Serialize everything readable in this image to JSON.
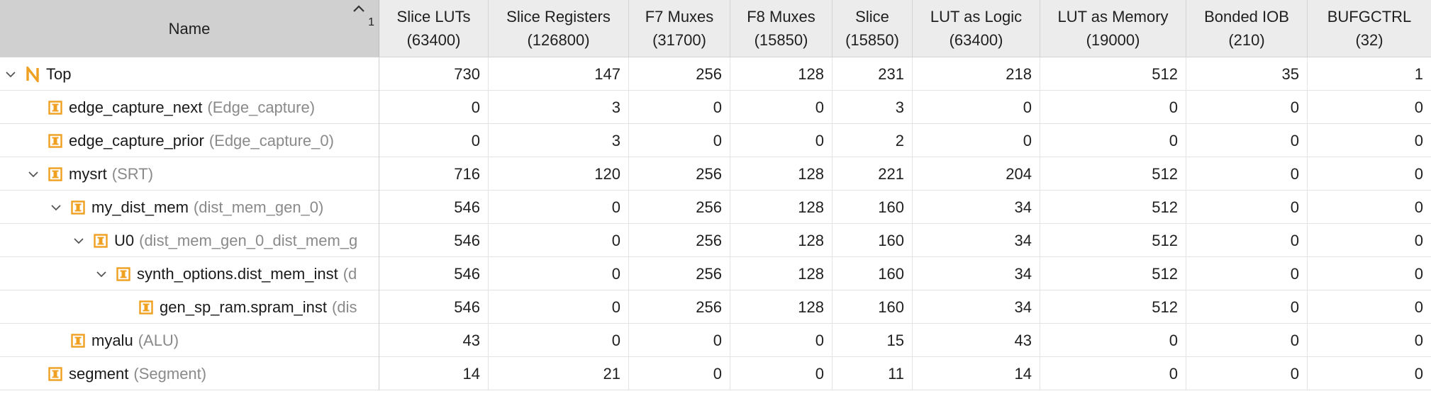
{
  "table": {
    "name_header": "Name",
    "sort_indicator": "1",
    "columns": [
      {
        "label": "Slice LUTs",
        "capacity": "(63400)"
      },
      {
        "label": "Slice Registers",
        "capacity": "(126800)"
      },
      {
        "label": "F7 Muxes",
        "capacity": "(31700)"
      },
      {
        "label": "F8 Muxes",
        "capacity": "(15850)"
      },
      {
        "label": "Slice",
        "capacity": "(15850)"
      },
      {
        "label": "LUT as Logic",
        "capacity": "(63400)"
      },
      {
        "label": "LUT as Memory",
        "capacity": "(19000)"
      },
      {
        "label": "Bonded IOB",
        "capacity": "(210)"
      },
      {
        "label": "BUFGCTRL",
        "capacity": "(32)"
      }
    ],
    "rows": [
      {
        "name": "Top",
        "module": "",
        "icon": "top-module-icon",
        "level": 0,
        "expandable": true,
        "values": [
          "730",
          "147",
          "256",
          "128",
          "231",
          "218",
          "512",
          "35",
          "1"
        ]
      },
      {
        "name": "edge_capture_next",
        "module": "(Edge_capture)",
        "icon": "instance-icon",
        "level": 1,
        "expandable": false,
        "values": [
          "0",
          "3",
          "0",
          "0",
          "3",
          "0",
          "0",
          "0",
          "0"
        ]
      },
      {
        "name": "edge_capture_prior",
        "module": "(Edge_capture_0)",
        "icon": "instance-icon",
        "level": 1,
        "expandable": false,
        "values": [
          "0",
          "3",
          "0",
          "0",
          "2",
          "0",
          "0",
          "0",
          "0"
        ]
      },
      {
        "name": "mysrt",
        "module": "(SRT)",
        "icon": "instance-icon",
        "level": 1,
        "expandable": true,
        "values": [
          "716",
          "120",
          "256",
          "128",
          "221",
          "204",
          "512",
          "0",
          "0"
        ]
      },
      {
        "name": "my_dist_mem",
        "module": "(dist_mem_gen_0)",
        "icon": "instance-icon",
        "level": 2,
        "expandable": true,
        "values": [
          "546",
          "0",
          "256",
          "128",
          "160",
          "34",
          "512",
          "0",
          "0"
        ]
      },
      {
        "name": "U0",
        "module": "(dist_mem_gen_0_dist_mem_g",
        "icon": "instance-icon",
        "level": 3,
        "expandable": true,
        "values": [
          "546",
          "0",
          "256",
          "128",
          "160",
          "34",
          "512",
          "0",
          "0"
        ]
      },
      {
        "name": "synth_options.dist_mem_inst",
        "module": "(d",
        "icon": "instance-icon",
        "level": 4,
        "expandable": true,
        "values": [
          "546",
          "0",
          "256",
          "128",
          "160",
          "34",
          "512",
          "0",
          "0"
        ]
      },
      {
        "name": "gen_sp_ram.spram_inst",
        "module": "(dis",
        "icon": "instance-icon",
        "level": 5,
        "expandable": false,
        "values": [
          "546",
          "0",
          "256",
          "128",
          "160",
          "34",
          "512",
          "0",
          "0"
        ]
      },
      {
        "name": "myalu",
        "module": "(ALU)",
        "icon": "instance-icon",
        "level": 2,
        "expandable": false,
        "values": [
          "43",
          "0",
          "0",
          "0",
          "15",
          "43",
          "0",
          "0",
          "0"
        ]
      },
      {
        "name": "segment",
        "module": "(Segment)",
        "icon": "instance-icon",
        "level": 1,
        "expandable": false,
        "values": [
          "14",
          "21",
          "0",
          "0",
          "11",
          "14",
          "0",
          "0",
          "0"
        ]
      }
    ]
  },
  "colors": {
    "header_bg": "#ececec",
    "name_header_bg": "#d0d0d0",
    "icon_orange": "#f0a020",
    "module_text": "#8a8a8a"
  }
}
